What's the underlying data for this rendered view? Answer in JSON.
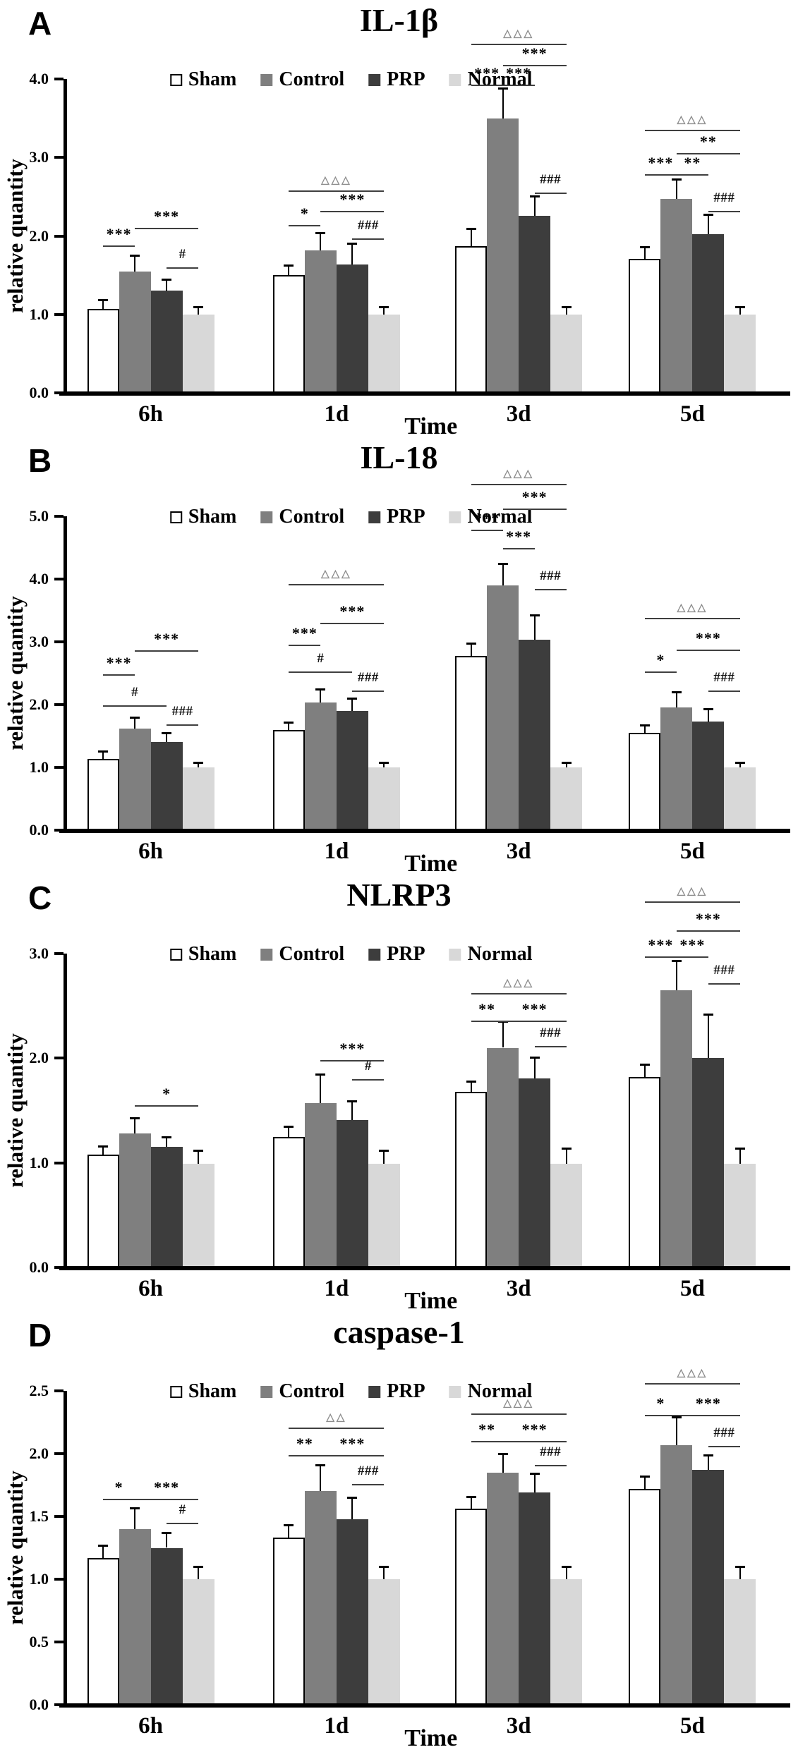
{
  "colors": {
    "sham": "#ffffff",
    "control": "#7f7f7f",
    "prp": "#3d3d3d",
    "normal": "#d8d8d8",
    "axis": "#000000",
    "bracket": "#3f3f3f",
    "delta_marker": "#8d8d8d"
  },
  "legend": {
    "items": [
      {
        "key": "sham",
        "label": "Sham"
      },
      {
        "key": "control",
        "label": "Control"
      },
      {
        "key": "prp",
        "label": "PRP"
      },
      {
        "key": "normal",
        "label": "Normal"
      }
    ]
  },
  "chart_data": [
    {
      "type": "bar",
      "letter": "A",
      "title": "IL-1β",
      "ylabel": "relative quantity",
      "xlabel": "Time",
      "ylim": [
        0,
        4.0
      ],
      "ytick_step": 1.0,
      "grid": false,
      "legend_position": "top-inside",
      "categories": [
        "6h",
        "1d",
        "3d",
        "5d"
      ],
      "series": [
        {
          "name": "Sham",
          "values": [
            1.07,
            1.5,
            1.87,
            1.71
          ],
          "errors": [
            0.12,
            0.13,
            0.22,
            0.15
          ]
        },
        {
          "name": "Control",
          "values": [
            1.55,
            1.82,
            3.5,
            2.47
          ],
          "errors": [
            0.2,
            0.22,
            0.38,
            0.25
          ]
        },
        {
          "name": "PRP",
          "values": [
            1.3,
            1.64,
            2.26,
            2.02
          ],
          "errors": [
            0.15,
            0.27,
            0.25,
            0.25
          ]
        },
        {
          "name": "Normal",
          "values": [
            1.0,
            1.0,
            1.0,
            1.0
          ],
          "errors": [
            0.1,
            0.1,
            0.1,
            0.1
          ]
        }
      ],
      "significance": [
        {
          "group": 0,
          "from": "Sham",
          "to": "Control",
          "label": "***",
          "y": 1.88
        },
        {
          "group": 0,
          "from": "Control",
          "to": "Normal",
          "label": "***",
          "y": 2.1
        },
        {
          "group": 0,
          "from": "PRP",
          "to": "Normal",
          "label": "#",
          "y": 1.6
        },
        {
          "group": 1,
          "from": "PRP",
          "to": "Normal",
          "label": "###",
          "y": 1.97
        },
        {
          "group": 1,
          "from": "Sham",
          "to": "Control",
          "label": "*",
          "y": 2.14
        },
        {
          "group": 1,
          "from": "Control",
          "to": "Normal",
          "label": "***",
          "y": 2.32
        },
        {
          "group": 1,
          "from": "Sham",
          "to": "Normal",
          "label": "△△△",
          "y": 2.58
        },
        {
          "group": 2,
          "from": "PRP",
          "to": "Normal",
          "label": "###",
          "y": 2.55
        },
        {
          "group": 2,
          "from": "Sham",
          "to": "Control",
          "label": "***",
          "y": 3.93
        },
        {
          "group": 2,
          "from": "Control",
          "to": "PRP",
          "label": "***",
          "y": 3.93
        },
        {
          "group": 2,
          "from": "Control",
          "to": "Normal",
          "label": "***",
          "y": 4.18
        },
        {
          "group": 2,
          "from": "Sham",
          "to": "Normal",
          "label": "△△△",
          "y": 4.45
        },
        {
          "group": 3,
          "from": "PRP",
          "to": "Normal",
          "label": "###",
          "y": 2.32
        },
        {
          "group": 3,
          "from": "Sham",
          "to": "Control",
          "label": "***",
          "y": 2.79
        },
        {
          "group": 3,
          "from": "Control",
          "to": "PRP",
          "label": "**",
          "y": 2.79
        },
        {
          "group": 3,
          "from": "Control",
          "to": "Normal",
          "label": "**",
          "y": 3.06
        },
        {
          "group": 3,
          "from": "Sham",
          "to": "Normal",
          "label": "△△△",
          "y": 3.35
        }
      ]
    },
    {
      "type": "bar",
      "letter": "B",
      "title": "IL-18",
      "ylabel": "relative quantity",
      "xlabel": "Time",
      "ylim": [
        0,
        5.0
      ],
      "ytick_step": 1.0,
      "grid": false,
      "legend_position": "top-inside",
      "categories": [
        "6h",
        "1d",
        "3d",
        "5d"
      ],
      "series": [
        {
          "name": "Sham",
          "values": [
            1.13,
            1.6,
            2.78,
            1.55
          ],
          "errors": [
            0.13,
            0.12,
            0.2,
            0.12
          ]
        },
        {
          "name": "Control",
          "values": [
            1.62,
            2.03,
            3.9,
            1.95
          ],
          "errors": [
            0.18,
            0.22,
            0.35,
            0.25
          ]
        },
        {
          "name": "PRP",
          "values": [
            1.4,
            1.9,
            3.03,
            1.73
          ],
          "errors": [
            0.15,
            0.2,
            0.4,
            0.2
          ]
        },
        {
          "name": "Normal",
          "values": [
            1.0,
            1.0,
            1.0,
            1.0
          ],
          "errors": [
            0.08,
            0.08,
            0.08,
            0.08
          ]
        }
      ],
      "significance": [
        {
          "group": 0,
          "from": "Sham",
          "to": "Control",
          "label": "***",
          "y": 2.48
        },
        {
          "group": 0,
          "from": "Sham",
          "to": "PRP",
          "label": "#",
          "y": 1.99
        },
        {
          "group": 0,
          "from": "Control",
          "to": "Normal",
          "label": "***",
          "y": 2.86
        },
        {
          "group": 0,
          "from": "PRP",
          "to": "Normal",
          "label": "###",
          "y": 1.69
        },
        {
          "group": 1,
          "from": "Sham",
          "to": "Control",
          "label": "***",
          "y": 2.95
        },
        {
          "group": 1,
          "from": "Sham",
          "to": "PRP",
          "label": "#",
          "y": 2.53
        },
        {
          "group": 1,
          "from": "Control",
          "to": "Normal",
          "label": "***",
          "y": 3.3
        },
        {
          "group": 1,
          "from": "PRP",
          "to": "Normal",
          "label": "###",
          "y": 2.23
        },
        {
          "group": 1,
          "from": "Sham",
          "to": "Normal",
          "label": "△△△",
          "y": 3.92
        },
        {
          "group": 2,
          "from": "Sham",
          "to": "Control",
          "label": "***",
          "y": 4.79
        },
        {
          "group": 2,
          "from": "Control",
          "to": "PRP",
          "label": "***",
          "y": 4.5
        },
        {
          "group": 2,
          "from": "Control",
          "to": "Normal",
          "label": "***",
          "y": 5.12
        },
        {
          "group": 2,
          "from": "PRP",
          "to": "Normal",
          "label": "###",
          "y": 3.84
        },
        {
          "group": 2,
          "from": "Sham",
          "to": "Normal",
          "label": "△△△",
          "y": 5.52
        },
        {
          "group": 3,
          "from": "Sham",
          "to": "Control",
          "label": "*",
          "y": 2.53
        },
        {
          "group": 3,
          "from": "Control",
          "to": "Normal",
          "label": "***",
          "y": 2.88
        },
        {
          "group": 3,
          "from": "PRP",
          "to": "Normal",
          "label": "###",
          "y": 2.23
        },
        {
          "group": 3,
          "from": "Sham",
          "to": "Normal",
          "label": "△△△",
          "y": 3.38
        }
      ]
    },
    {
      "type": "bar",
      "letter": "C",
      "title": "NLRP3",
      "ylabel": "relative quantity",
      "xlabel": "Time",
      "ylim": [
        0,
        3.0
      ],
      "ytick_step": 1.0,
      "grid": false,
      "legend_position": "top-inside",
      "categories": [
        "6h",
        "1d",
        "3d",
        "5d"
      ],
      "series": [
        {
          "name": "Sham",
          "values": [
            1.08,
            1.25,
            1.68,
            1.82
          ],
          "errors": [
            0.08,
            0.1,
            0.1,
            0.12
          ]
        },
        {
          "name": "Control",
          "values": [
            1.28,
            1.57,
            2.1,
            2.65
          ],
          "errors": [
            0.15,
            0.28,
            0.25,
            0.28
          ]
        },
        {
          "name": "PRP",
          "values": [
            1.15,
            1.41,
            1.81,
            2.0
          ],
          "errors": [
            0.1,
            0.18,
            0.2,
            0.42
          ]
        },
        {
          "name": "Normal",
          "values": [
            0.99,
            0.99,
            0.99,
            0.99
          ],
          "errors": [
            0.13,
            0.13,
            0.15,
            0.15
          ]
        }
      ],
      "significance": [
        {
          "group": 0,
          "from": "Control",
          "to": "Normal",
          "label": "*",
          "y": 1.55
        },
        {
          "group": 1,
          "from": "Control",
          "to": "Normal",
          "label": "***",
          "y": 1.98
        },
        {
          "group": 1,
          "from": "PRP",
          "to": "Normal",
          "label": "#",
          "y": 1.8
        },
        {
          "group": 2,
          "from": "PRP",
          "to": "Normal",
          "label": "###",
          "y": 2.12
        },
        {
          "group": 2,
          "from": "Sham",
          "to": "Control",
          "label": "**",
          "y": 2.36
        },
        {
          "group": 2,
          "from": "Control",
          "to": "Normal",
          "label": "***",
          "y": 2.36
        },
        {
          "group": 2,
          "from": "Sham",
          "to": "Normal",
          "label": "△△△",
          "y": 2.62
        },
        {
          "group": 3,
          "from": "PRP",
          "to": "Normal",
          "label": "###",
          "y": 2.72
        },
        {
          "group": 3,
          "from": "Sham",
          "to": "Control",
          "label": "***",
          "y": 2.97
        },
        {
          "group": 3,
          "from": "Control",
          "to": "PRP",
          "label": "***",
          "y": 2.97
        },
        {
          "group": 3,
          "from": "Control",
          "to": "Normal",
          "label": "***",
          "y": 3.22
        },
        {
          "group": 3,
          "from": "Sham",
          "to": "Normal",
          "label": "△△△",
          "y": 3.5
        }
      ]
    },
    {
      "type": "bar",
      "letter": "D",
      "title": "caspase-1",
      "ylabel": "relative quantity",
      "xlabel": "Time",
      "ylim": [
        0,
        2.5
      ],
      "ytick_step": 0.5,
      "grid": false,
      "legend_position": "top-inside",
      "categories": [
        "6h",
        "1d",
        "3d",
        "5d"
      ],
      "series": [
        {
          "name": "Sham",
          "values": [
            1.17,
            1.33,
            1.56,
            1.72
          ],
          "errors": [
            0.1,
            0.1,
            0.1,
            0.1
          ]
        },
        {
          "name": "Control",
          "values": [
            1.4,
            1.7,
            1.85,
            2.07
          ],
          "errors": [
            0.17,
            0.21,
            0.15,
            0.22
          ]
        },
        {
          "name": "PRP",
          "values": [
            1.25,
            1.48,
            1.69,
            1.87
          ],
          "errors": [
            0.12,
            0.17,
            0.15,
            0.12
          ]
        },
        {
          "name": "Normal",
          "values": [
            1.0,
            1.0,
            1.0,
            1.0
          ],
          "errors": [
            0.1,
            0.1,
            0.1,
            0.1
          ]
        }
      ],
      "significance": [
        {
          "group": 0,
          "from": "Sham",
          "to": "Control",
          "label": "*",
          "y": 1.64
        },
        {
          "group": 0,
          "from": "Control",
          "to": "Normal",
          "label": "***",
          "y": 1.64
        },
        {
          "group": 0,
          "from": "PRP",
          "to": "Normal",
          "label": "#",
          "y": 1.45
        },
        {
          "group": 1,
          "from": "Sham",
          "to": "Control",
          "label": "**",
          "y": 1.99
        },
        {
          "group": 1,
          "from": "Control",
          "to": "Normal",
          "label": "***",
          "y": 1.99
        },
        {
          "group": 1,
          "from": "PRP",
          "to": "Normal",
          "label": "###",
          "y": 1.76
        },
        {
          "group": 1,
          "from": "Sham",
          "to": "Normal",
          "label": "△△",
          "y": 2.21
        },
        {
          "group": 2,
          "from": "Sham",
          "to": "Control",
          "label": "**",
          "y": 2.1
        },
        {
          "group": 2,
          "from": "Control",
          "to": "Normal",
          "label": "***",
          "y": 2.1
        },
        {
          "group": 2,
          "from": "PRP",
          "to": "Normal",
          "label": "###",
          "y": 1.91
        },
        {
          "group": 2,
          "from": "Sham",
          "to": "Normal",
          "label": "△△△",
          "y": 2.32
        },
        {
          "group": 3,
          "from": "Sham",
          "to": "Control",
          "label": "*",
          "y": 2.31
        },
        {
          "group": 3,
          "from": "Control",
          "to": "Normal",
          "label": "***",
          "y": 2.31
        },
        {
          "group": 3,
          "from": "PRP",
          "to": "Normal",
          "label": "###",
          "y": 2.06
        },
        {
          "group": 3,
          "from": "Sham",
          "to": "Normal",
          "label": "△△△",
          "y": 2.56
        }
      ]
    }
  ]
}
